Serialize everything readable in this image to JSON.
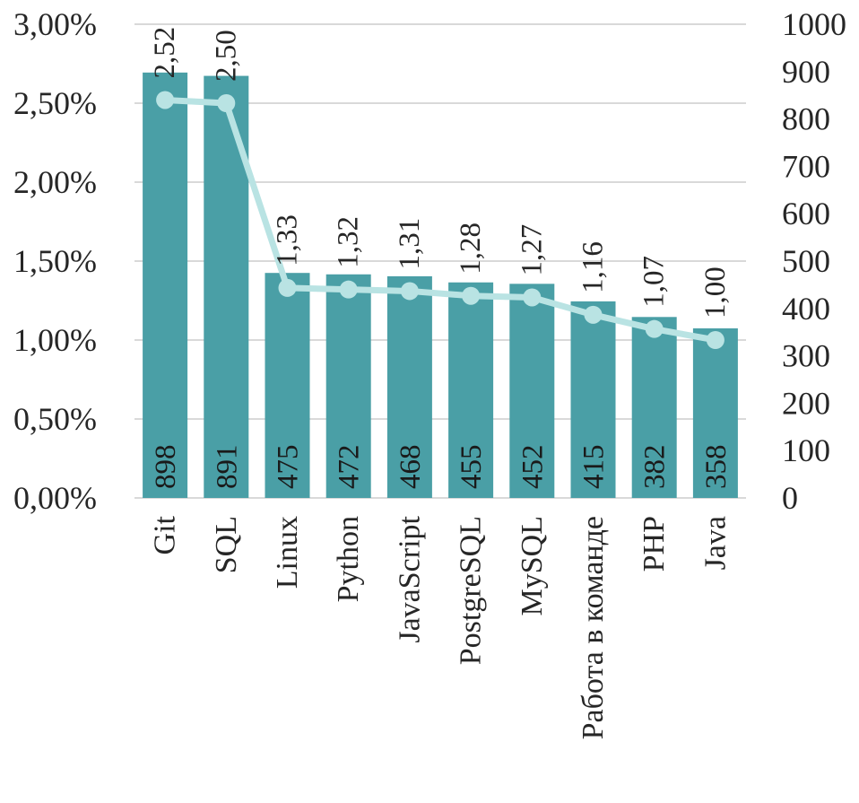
{
  "chart_data": {
    "type": "bar",
    "categories": [
      "Git",
      "SQL",
      "Linux",
      "Python",
      "JavaScript",
      "PostgreSQL",
      "MySQL",
      "Работа в команде",
      "PHP",
      "Java"
    ],
    "bar_values": [
      898,
      891,
      475,
      472,
      468,
      455,
      452,
      415,
      382,
      358
    ],
    "line_values": [
      2.52,
      2.5,
      1.33,
      1.32,
      1.31,
      1.28,
      1.27,
      1.16,
      1.07,
      1.0
    ],
    "bar_labels": [
      "898",
      "891",
      "475",
      "472",
      "468",
      "455",
      "452",
      "415",
      "382",
      "358"
    ],
    "line_labels": [
      "2,52",
      "2,50",
      "1,33",
      "1,32",
      "1,31",
      "1,28",
      "1,27",
      "1,16",
      "1,07",
      "1,00"
    ],
    "y_left": {
      "lim": [
        0,
        3
      ],
      "ticks": [
        0,
        0.5,
        1,
        1.5,
        2,
        2.5,
        3
      ],
      "tick_labels": [
        "0,00%",
        "0,50%",
        "1,00%",
        "1,50%",
        "2,00%",
        "2,50%",
        "3,00%"
      ]
    },
    "y_right": {
      "lim": [
        0,
        1000
      ],
      "ticks": [
        0,
        100,
        200,
        300,
        400,
        500,
        600,
        700,
        800,
        900,
        1000
      ],
      "tick_labels": [
        "0",
        "100",
        "200",
        "300",
        "400",
        "500",
        "600",
        "700",
        "800",
        "900",
        "1000"
      ]
    },
    "grid": true,
    "colors": {
      "bar": "#4a9fa6",
      "line": "#b9e3e3",
      "gridline": "#d9d9d9",
      "text": "#262626",
      "bar_label": "#1a1a1a"
    }
  }
}
